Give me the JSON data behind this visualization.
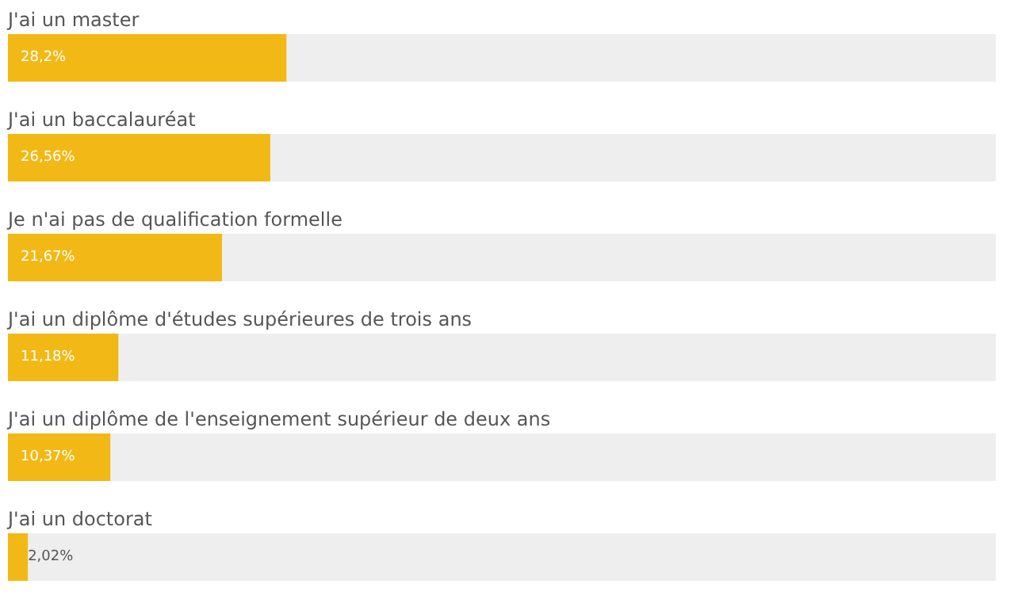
{
  "chart_data": {
    "type": "bar",
    "orientation": "horizontal",
    "categories": [
      "J'ai un master",
      "J'ai un baccalauréat",
      "Je n'ai pas de qualification formelle",
      "J'ai un diplôme d'études supérieures de trois ans",
      "J'ai un diplôme de l'enseignement supérieur de deux ans",
      "J'ai un doctorat"
    ],
    "values": [
      28.2,
      26.56,
      21.67,
      11.18,
      10.37,
      2.02
    ],
    "value_labels": [
      "28,2%",
      "26,56%",
      "21,67%",
      "11,18%",
      "10,37%",
      "2,02%"
    ],
    "color": "#f2b916",
    "xlim": [
      0,
      100
    ],
    "tick_labels": "y"
  }
}
